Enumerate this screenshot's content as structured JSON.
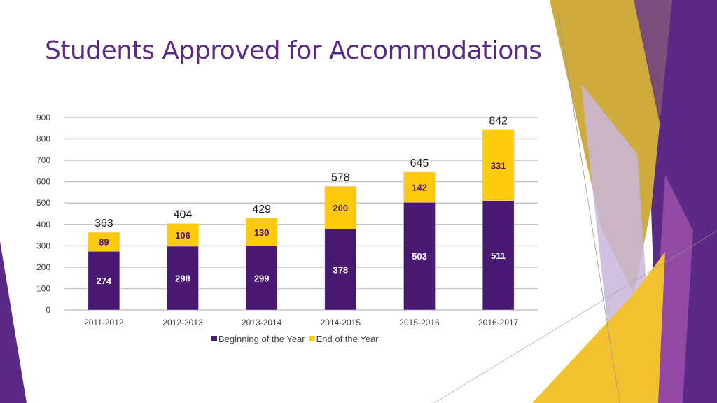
{
  "slide": {
    "title": "Students Approved for Accommodations"
  },
  "colors": {
    "beginning": "#4a1a72",
    "end": "#ffc90e",
    "grid": "#c8c8c8",
    "title": "#5b2a86"
  },
  "chart_data": {
    "type": "bar",
    "stacked": true,
    "categories": [
      "2011-2012",
      "2012-2013",
      "2013-2014",
      "2014-2015",
      "2015-2016",
      "2016-2017"
    ],
    "series": [
      {
        "name": "Beginning of the Year",
        "values": [
          274,
          298,
          299,
          378,
          503,
          511
        ]
      },
      {
        "name": "End of the Year",
        "values": [
          89,
          106,
          130,
          200,
          142,
          331
        ]
      }
    ],
    "totals": [
      363,
      404,
      429,
      578,
      645,
      842
    ],
    "ylim": [
      0,
      900
    ],
    "yticks": [
      0,
      100,
      200,
      300,
      400,
      500,
      600,
      700,
      800,
      900
    ],
    "grid": true,
    "legend": "bottom"
  }
}
